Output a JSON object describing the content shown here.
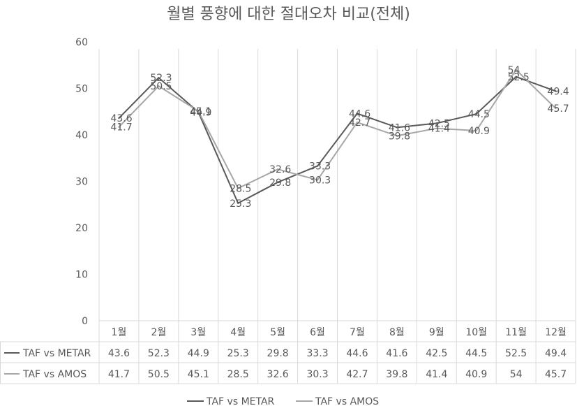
{
  "chart_data": {
    "type": "line",
    "title": "월별 풍향에 대한 절대오차 비교(전체)",
    "categories": [
      "1월",
      "2월",
      "3월",
      "4월",
      "5월",
      "6월",
      "7월",
      "8월",
      "9월",
      "10월",
      "11월",
      "12월"
    ],
    "series": [
      {
        "name": "TAF vs METAR",
        "color": "#595959",
        "values": [
          43.6,
          52.3,
          44.9,
          25.3,
          29.8,
          33.3,
          44.6,
          41.6,
          42.5,
          44.5,
          52.5,
          49.4
        ]
      },
      {
        "name": "TAF vs AMOS",
        "color": "#a6a6a6",
        "values": [
          41.7,
          50.5,
          45.1,
          28.5,
          32.6,
          30.3,
          42.7,
          39.8,
          41.4,
          40.9,
          54,
          45.7
        ]
      }
    ],
    "yticks": [
      0,
      10,
      20,
      30,
      40,
      50,
      60
    ],
    "ylim": [
      0,
      60
    ],
    "grid": "vertical",
    "data_table": true,
    "legend": "bottom"
  }
}
